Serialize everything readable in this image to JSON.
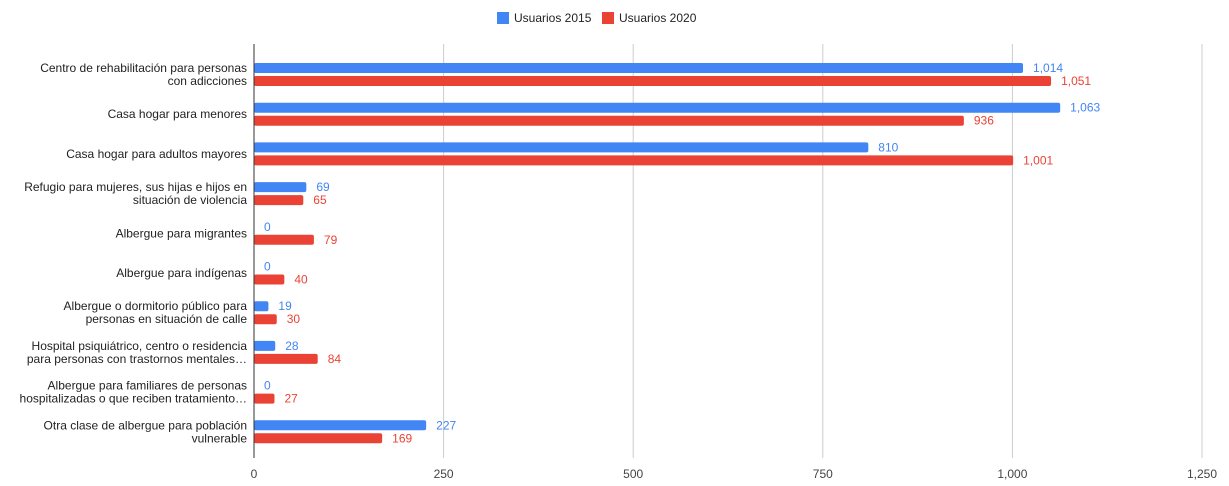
{
  "chart_data": {
    "type": "bar",
    "orientation": "horizontal",
    "categories": [
      [
        "Centro de rehabilitación para personas",
        "con adicciones"
      ],
      [
        "Casa hogar para menores"
      ],
      [
        "Casa hogar para adultos mayores"
      ],
      [
        "Refugio para mujeres, sus hijas e hijos en",
        "situación de violencia"
      ],
      [
        "Albergue para migrantes"
      ],
      [
        "Albergue para indígenas"
      ],
      [
        "Albergue o dormitorio público para",
        "personas en situación de calle"
      ],
      [
        "Hospital psiquiátrico, centro o residencia",
        "para personas con trastornos mentales…"
      ],
      [
        "Albergue para familiares de personas",
        "hospitalizadas o que reciben tratamiento…"
      ],
      [
        "Otra clase de albergue para población",
        "vulnerable"
      ]
    ],
    "series": [
      {
        "name": "Usuarios 2015",
        "color": "#4285f4",
        "values": [
          1014,
          1063,
          810,
          69,
          0,
          0,
          19,
          28,
          0,
          227
        ],
        "labels": [
          "1,014",
          "1,063",
          "810",
          "69",
          "0",
          "0",
          "19",
          "28",
          "0",
          "227"
        ]
      },
      {
        "name": "Usuarios 2020",
        "color": "#ea4335",
        "values": [
          1051,
          936,
          1001,
          65,
          79,
          40,
          30,
          84,
          27,
          169
        ],
        "labels": [
          "1,051",
          "936",
          "1,001",
          "65",
          "79",
          "40",
          "30",
          "84",
          "27",
          "169"
        ]
      }
    ],
    "xlim": [
      0,
      1250
    ],
    "xticks": [
      0,
      250,
      500,
      750,
      1000,
      1250
    ],
    "xtick_labels": [
      "0",
      "250",
      "500",
      "750",
      "1,000",
      "1,250"
    ],
    "grid": true,
    "legend_position": "top-center"
  }
}
